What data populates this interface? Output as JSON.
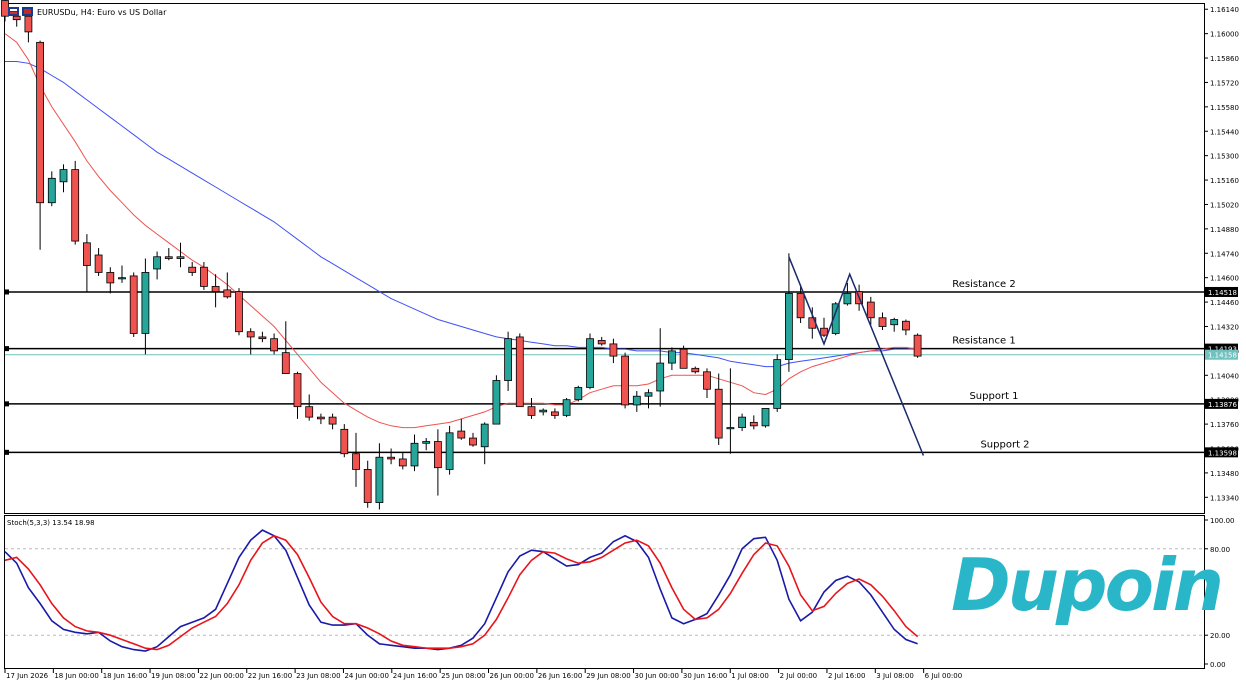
{
  "header": {
    "title": "EURUSDu, H4:  Euro vs US Dollar"
  },
  "stoch_label": "Stoch(5,3,3) 13.54 18.98",
  "logo_text": "Dupoin",
  "colors": {
    "bull": "#26a69a",
    "bear": "#ef5350",
    "ma_fast": "#ef5350",
    "ma_slow": "#3f51f5",
    "stoch_k": "#1a1aa8",
    "stoch_d": "#e8141b",
    "logo": "#29b6c8",
    "trend": "#1b2a6b",
    "bid_line": "#6fc2c0"
  },
  "chart_data": [
    {
      "type": "candlestick",
      "title": "EURUSDu, H4:  Euro vs US Dollar",
      "ylim": [
        1.1325,
        1.1617
      ],
      "price_ticks": [
        "1.16140",
        "1.16000",
        "1.15860",
        "1.15720",
        "1.15580",
        "1.15440",
        "1.15300",
        "1.15160",
        "1.15020",
        "1.14880",
        "1.14740",
        "1.14600",
        "1.14460",
        "1.14320",
        "1.14180",
        "1.14040",
        "1.13900",
        "1.13760",
        "1.13620",
        "1.13480",
        "1.13340"
      ],
      "time_labels": [
        "17 Jun 2026",
        "18 Jun 00:00",
        "18 Jun 16:00",
        "19 Jun 08:00",
        "22 Jun 00:00",
        "22 Jun 16:00",
        "23 Jun 08:00",
        "24 Jun 00:00",
        "24 Jun 16:00",
        "25 Jun 08:00",
        "26 Jun 00:00",
        "26 Jun 16:00",
        "29 Jun 08:00",
        "30 Jun 00:00",
        "30 Jun 16:00",
        "1 Jul 08:00",
        "2 Jul 00:00",
        "2 Jul 16:00",
        "3 Jul 08:00",
        "6 Jul 00:00"
      ],
      "candles": [
        {
          "o": 1.1619,
          "h": 1.1622,
          "l": 1.1607,
          "c": 1.161
        },
        {
          "o": 1.161,
          "h": 1.1612,
          "l": 1.1604,
          "c": 1.1608
        },
        {
          "o": 1.161,
          "h": 1.161,
          "l": 1.1595,
          "c": 1.1601
        },
        {
          "o": 1.1595,
          "h": 1.1596,
          "l": 1.1476,
          "c": 1.1503
        },
        {
          "o": 1.1503,
          "h": 1.1521,
          "l": 1.1501,
          "c": 1.1517
        },
        {
          "o": 1.1515,
          "h": 1.1525,
          "l": 1.1509,
          "c": 1.1522
        },
        {
          "o": 1.1522,
          "h": 1.1527,
          "l": 1.1479,
          "c": 1.1481
        },
        {
          "o": 1.148,
          "h": 1.1485,
          "l": 1.1452,
          "c": 1.1467
        },
        {
          "o": 1.1473,
          "h": 1.1477,
          "l": 1.1461,
          "c": 1.1463
        },
        {
          "o": 1.1463,
          "h": 1.1466,
          "l": 1.1451,
          "c": 1.1457
        },
        {
          "o": 1.146,
          "h": 1.1467,
          "l": 1.1457,
          "c": 1.146
        },
        {
          "o": 1.1461,
          "h": 1.1463,
          "l": 1.1426,
          "c": 1.1428
        },
        {
          "o": 1.1428,
          "h": 1.1471,
          "l": 1.1416,
          "c": 1.1463
        },
        {
          "o": 1.1465,
          "h": 1.1475,
          "l": 1.1459,
          "c": 1.1472
        },
        {
          "o": 1.1472,
          "h": 1.1477,
          "l": 1.147,
          "c": 1.1471
        },
        {
          "o": 1.1471,
          "h": 1.148,
          "l": 1.1466,
          "c": 1.1472
        },
        {
          "o": 1.1466,
          "h": 1.1469,
          "l": 1.1461,
          "c": 1.1463
        },
        {
          "o": 1.1466,
          "h": 1.1469,
          "l": 1.1453,
          "c": 1.1455
        },
        {
          "o": 1.1455,
          "h": 1.1462,
          "l": 1.1443,
          "c": 1.1452
        },
        {
          "o": 1.1453,
          "h": 1.1463,
          "l": 1.1448,
          "c": 1.1449
        },
        {
          "o": 1.1452,
          "h": 1.1454,
          "l": 1.1427,
          "c": 1.1429
        },
        {
          "o": 1.1429,
          "h": 1.1431,
          "l": 1.1416,
          "c": 1.1426
        },
        {
          "o": 1.1426,
          "h": 1.1429,
          "l": 1.1423,
          "c": 1.1425
        },
        {
          "o": 1.1425,
          "h": 1.1428,
          "l": 1.1416,
          "c": 1.1418
        },
        {
          "o": 1.1417,
          "h": 1.1435,
          "l": 1.1405,
          "c": 1.1405
        },
        {
          "o": 1.1405,
          "h": 1.1406,
          "l": 1.1379,
          "c": 1.1386
        },
        {
          "o": 1.1386,
          "h": 1.1393,
          "l": 1.1378,
          "c": 1.138
        },
        {
          "o": 1.138,
          "h": 1.1382,
          "l": 1.1376,
          "c": 1.1379
        },
        {
          "o": 1.138,
          "h": 1.1382,
          "l": 1.1373,
          "c": 1.1376
        },
        {
          "o": 1.1373,
          "h": 1.1376,
          "l": 1.1357,
          "c": 1.1359
        },
        {
          "o": 1.1359,
          "h": 1.1371,
          "l": 1.134,
          "c": 1.135
        },
        {
          "o": 1.135,
          "h": 1.1355,
          "l": 1.1328,
          "c": 1.1331
        },
        {
          "o": 1.1331,
          "h": 1.1365,
          "l": 1.1327,
          "c": 1.1357
        },
        {
          "o": 1.1357,
          "h": 1.1362,
          "l": 1.1353,
          "c": 1.1356
        },
        {
          "o": 1.1356,
          "h": 1.136,
          "l": 1.135,
          "c": 1.1352
        },
        {
          "o": 1.1352,
          "h": 1.137,
          "l": 1.1349,
          "c": 1.1365
        },
        {
          "o": 1.1365,
          "h": 1.1368,
          "l": 1.1361,
          "c": 1.1366
        },
        {
          "o": 1.1366,
          "h": 1.1373,
          "l": 1.1335,
          "c": 1.1351
        },
        {
          "o": 1.135,
          "h": 1.1375,
          "l": 1.1347,
          "c": 1.1371
        },
        {
          "o": 1.1372,
          "h": 1.1379,
          "l": 1.1367,
          "c": 1.1368
        },
        {
          "o": 1.1368,
          "h": 1.1371,
          "l": 1.1363,
          "c": 1.1364
        },
        {
          "o": 1.1363,
          "h": 1.1377,
          "l": 1.1353,
          "c": 1.1376
        },
        {
          "o": 1.1376,
          "h": 1.1404,
          "l": 1.1376,
          "c": 1.1401
        },
        {
          "o": 1.1401,
          "h": 1.1429,
          "l": 1.1395,
          "c": 1.1425
        },
        {
          "o": 1.1426,
          "h": 1.1428,
          "l": 1.1386,
          "c": 1.1386
        },
        {
          "o": 1.1386,
          "h": 1.1391,
          "l": 1.1379,
          "c": 1.1381
        },
        {
          "o": 1.1383,
          "h": 1.1385,
          "l": 1.1381,
          "c": 1.1384
        },
        {
          "o": 1.1383,
          "h": 1.1385,
          "l": 1.1379,
          "c": 1.1381
        },
        {
          "o": 1.1381,
          "h": 1.1391,
          "l": 1.138,
          "c": 1.139
        },
        {
          "o": 1.139,
          "h": 1.1398,
          "l": 1.1389,
          "c": 1.1397
        },
        {
          "o": 1.1397,
          "h": 1.1428,
          "l": 1.1396,
          "c": 1.1425
        },
        {
          "o": 1.1424,
          "h": 1.1426,
          "l": 1.1421,
          "c": 1.1422
        },
        {
          "o": 1.1422,
          "h": 1.1425,
          "l": 1.1411,
          "c": 1.1415
        },
        {
          "o": 1.1415,
          "h": 1.1417,
          "l": 1.1385,
          "c": 1.1387
        },
        {
          "o": 1.1387,
          "h": 1.1395,
          "l": 1.1383,
          "c": 1.1392
        },
        {
          "o": 1.1392,
          "h": 1.1396,
          "l": 1.1385,
          "c": 1.1394
        },
        {
          "o": 1.1395,
          "h": 1.1431,
          "l": 1.1386,
          "c": 1.1411
        },
        {
          "o": 1.1411,
          "h": 1.142,
          "l": 1.1407,
          "c": 1.1418
        },
        {
          "o": 1.1419,
          "h": 1.1421,
          "l": 1.1408,
          "c": 1.1408
        },
        {
          "o": 1.1408,
          "h": 1.1409,
          "l": 1.1405,
          "c": 1.1406
        },
        {
          "o": 1.1406,
          "h": 1.1408,
          "l": 1.1391,
          "c": 1.1396
        },
        {
          "o": 1.1396,
          "h": 1.1405,
          "l": 1.1364,
          "c": 1.1368
        },
        {
          "o": 1.1374,
          "h": 1.1408,
          "l": 1.1359,
          "c": 1.1374
        },
        {
          "o": 1.1374,
          "h": 1.1382,
          "l": 1.1372,
          "c": 1.138
        },
        {
          "o": 1.1377,
          "h": 1.1381,
          "l": 1.1373,
          "c": 1.1375
        },
        {
          "o": 1.1375,
          "h": 1.1385,
          "l": 1.1374,
          "c": 1.1385
        },
        {
          "o": 1.1385,
          "h": 1.1416,
          "l": 1.1383,
          "c": 1.1413
        },
        {
          "o": 1.1413,
          "h": 1.1474,
          "l": 1.1406,
          "c": 1.1451
        },
        {
          "o": 1.1451,
          "h": 1.1456,
          "l": 1.1434,
          "c": 1.1437
        },
        {
          "o": 1.1437,
          "h": 1.1443,
          "l": 1.1425,
          "c": 1.1431
        },
        {
          "o": 1.1431,
          "h": 1.1437,
          "l": 1.1426,
          "c": 1.1427
        },
        {
          "o": 1.1428,
          "h": 1.1446,
          "l": 1.1427,
          "c": 1.1445
        },
        {
          "o": 1.1445,
          "h": 1.1457,
          "l": 1.1444,
          "c": 1.1451
        },
        {
          "o": 1.1452,
          "h": 1.1456,
          "l": 1.1441,
          "c": 1.1445
        },
        {
          "o": 1.1446,
          "h": 1.1449,
          "l": 1.1433,
          "c": 1.1437
        },
        {
          "o": 1.1437,
          "h": 1.144,
          "l": 1.143,
          "c": 1.1432
        },
        {
          "o": 1.1433,
          "h": 1.1437,
          "l": 1.1429,
          "c": 1.1436
        },
        {
          "o": 1.1435,
          "h": 1.1436,
          "l": 1.1427,
          "c": 1.143
        },
        {
          "o": 1.1427,
          "h": 1.1428,
          "l": 1.1414,
          "c": 1.1415
        }
      ],
      "ma_fast": [
        1.16,
        1.1595,
        1.1585,
        1.157,
        1.1558,
        1.1548,
        1.1538,
        1.1527,
        1.1518,
        1.151,
        1.1503,
        1.1496,
        1.149,
        1.1485,
        1.148,
        1.1475,
        1.147,
        1.1466,
        1.1461,
        1.1456,
        1.145,
        1.1444,
        1.1438,
        1.1432,
        1.1424,
        1.1416,
        1.1408,
        1.14,
        1.1394,
        1.1388,
        1.1384,
        1.138,
        1.1377,
        1.1375,
        1.1374,
        1.1374,
        1.1375,
        1.1376,
        1.1377,
        1.1379,
        1.1381,
        1.1383,
        1.1386,
        1.1388,
        1.1388,
        1.1388,
        1.1388,
        1.1387,
        1.1387,
        1.139,
        1.1394,
        1.1396,
        1.1398,
        1.1398,
        1.1398,
        1.1399,
        1.1402,
        1.1404,
        1.1404,
        1.1404,
        1.1404,
        1.1402,
        1.14,
        1.1398,
        1.1394,
        1.1393,
        1.1396,
        1.1402,
        1.1406,
        1.1409,
        1.1411,
        1.1413,
        1.1415,
        1.1417,
        1.1418,
        1.1419,
        1.142,
        1.142,
        1.1419
      ],
      "ma_slow": [
        1.1584,
        1.1584,
        1.1583,
        1.158,
        1.1576,
        1.1572,
        1.1567,
        1.1562,
        1.1557,
        1.1552,
        1.1547,
        1.1542,
        1.1537,
        1.1532,
        1.1528,
        1.1524,
        1.152,
        1.1516,
        1.1512,
        1.1508,
        1.1504,
        1.15,
        1.1496,
        1.1492,
        1.1487,
        1.1482,
        1.1477,
        1.1472,
        1.1468,
        1.1464,
        1.146,
        1.1456,
        1.1452,
        1.1448,
        1.1445,
        1.1442,
        1.1439,
        1.1436,
        1.1434,
        1.1432,
        1.143,
        1.1428,
        1.1426,
        1.1425,
        1.1424,
        1.1423,
        1.1422,
        1.1421,
        1.1421,
        1.142,
        1.142,
        1.142,
        1.1419,
        1.1419,
        1.1418,
        1.1418,
        1.1418,
        1.1417,
        1.1417,
        1.1416,
        1.1415,
        1.1414,
        1.1412,
        1.1411,
        1.141,
        1.1409,
        1.1409,
        1.1411,
        1.1412,
        1.1413,
        1.1414,
        1.1415,
        1.1416,
        1.1417,
        1.1418,
        1.1418,
        1.1419,
        1.1419,
        1.1419
      ],
      "levels": [
        {
          "name": "Resistance 2",
          "price": 1.14518,
          "label": "1.14518"
        },
        {
          "name": "Resistance 1",
          "price": 1.14193,
          "label": "1.14193"
        },
        {
          "name": "Support 1",
          "price": 1.13876,
          "label": "1.13876"
        },
        {
          "name": "Support 2",
          "price": 1.13598,
          "label": "1.13598"
        }
      ],
      "bid": {
        "price": 1.14158,
        "label": "1.14158"
      },
      "trendline": [
        {
          "bar": 67.0,
          "price": 1.1472
        },
        {
          "bar": 70.0,
          "price": 1.1422
        },
        {
          "bar": 72.2,
          "price": 1.1462
        },
        {
          "bar": 78.5,
          "price": 1.1358
        }
      ]
    },
    {
      "type": "line",
      "title": "Stoch(5,3,3) 13.54 18.98",
      "ylim": [
        0,
        100
      ],
      "y_ticks": [
        "100.00",
        "80.00",
        "20.00",
        "0.00"
      ],
      "levels": [
        80,
        20
      ],
      "series": [
        {
          "name": "K",
          "values": [
            78,
            70,
            53,
            42,
            30,
            24,
            22,
            21,
            22,
            16,
            12,
            10,
            9,
            12,
            19,
            26,
            29,
            32,
            38,
            56,
            74,
            86,
            93,
            89,
            79,
            60,
            41,
            29,
            27,
            27,
            28,
            20,
            14,
            13,
            12,
            11,
            11,
            10,
            11,
            13,
            18,
            28,
            46,
            64,
            75,
            79,
            78,
            73,
            68,
            69,
            74,
            77,
            85,
            89,
            85,
            74,
            52,
            32,
            28,
            31,
            35,
            48,
            62,
            80,
            87,
            88,
            72,
            45,
            30,
            36,
            50,
            58,
            61,
            57,
            48,
            36,
            24,
            17,
            14
          ]
        },
        {
          "name": "D",
          "values": [
            72,
            74,
            66,
            55,
            42,
            32,
            26,
            23,
            22,
            20,
            17,
            14,
            11,
            10,
            13,
            19,
            25,
            29,
            33,
            42,
            55,
            72,
            84,
            89,
            86,
            76,
            60,
            43,
            33,
            28,
            28,
            25,
            21,
            16,
            13,
            12,
            11,
            11,
            11,
            12,
            14,
            20,
            31,
            46,
            62,
            72,
            78,
            77,
            73,
            70,
            71,
            74,
            79,
            84,
            86,
            82,
            70,
            53,
            38,
            31,
            32,
            38,
            49,
            63,
            76,
            84,
            82,
            68,
            48,
            37,
            40,
            49,
            56,
            59,
            55,
            47,
            37,
            26,
            19
          ]
        }
      ]
    }
  ]
}
